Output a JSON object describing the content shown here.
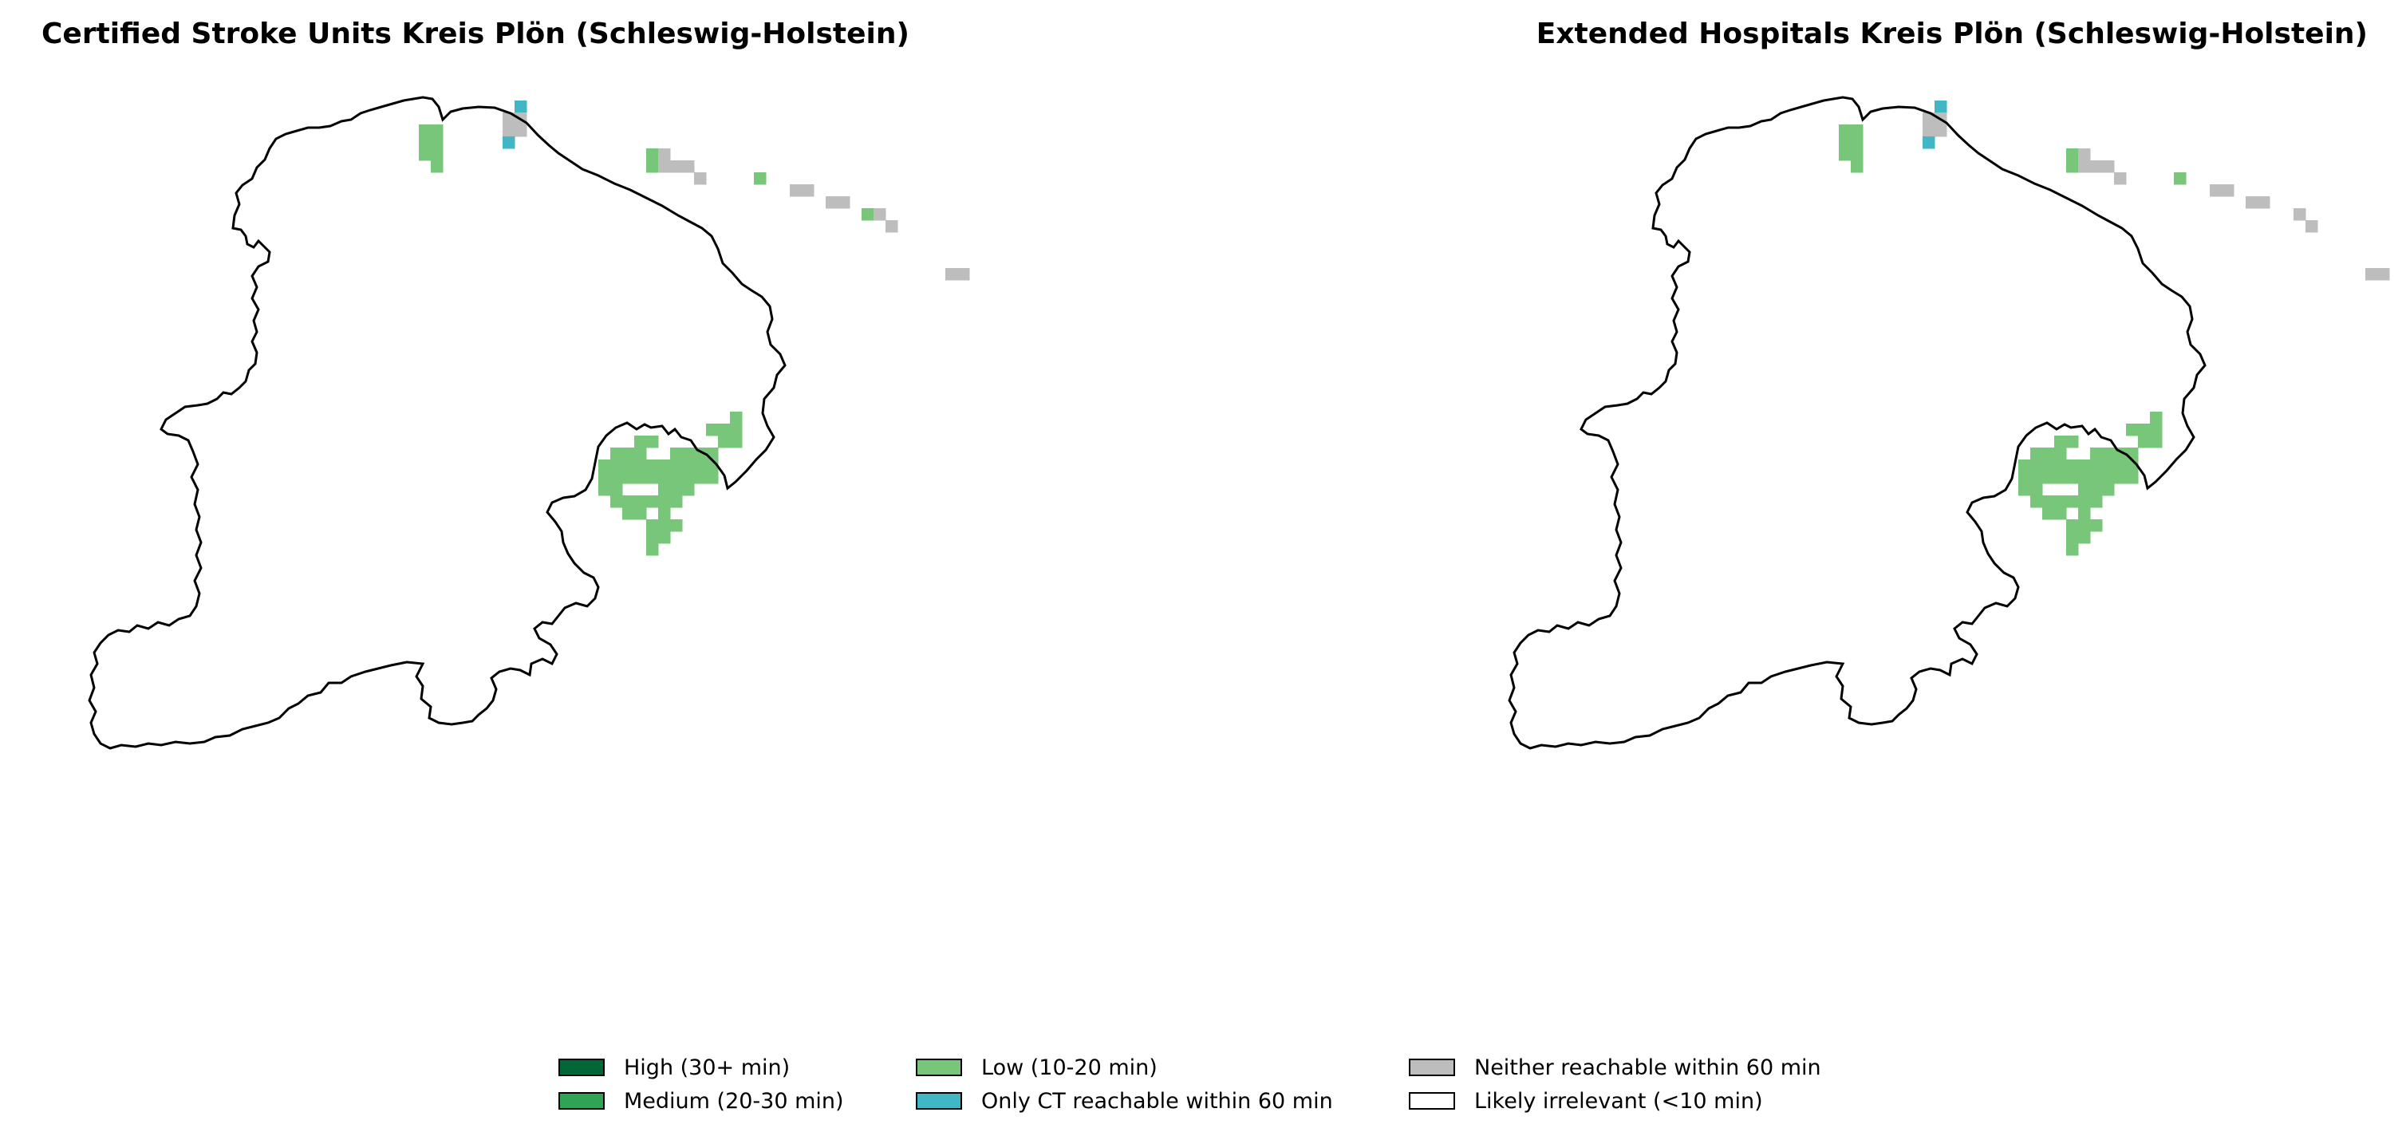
{
  "maps": [
    {
      "title": "Certified Stroke Units Kreis Plön (Schleswig-Holstein)",
      "cells": [
        {
          "c": 7,
          "r": 2,
          "cat": "low"
        },
        {
          "c": 8,
          "r": 2,
          "cat": "low"
        },
        {
          "c": 7,
          "r": 3,
          "cat": "low"
        },
        {
          "c": 8,
          "r": 3,
          "cat": "low"
        },
        {
          "c": 7,
          "r": 4,
          "cat": "low"
        },
        {
          "c": 8,
          "r": 4,
          "cat": "low"
        },
        {
          "c": 8,
          "r": 5,
          "cat": "low"
        },
        {
          "c": 15,
          "r": 0,
          "cat": "ct_only"
        },
        {
          "c": 14,
          "r": 1,
          "cat": "neither"
        },
        {
          "c": 15,
          "r": 1,
          "cat": "neither"
        },
        {
          "c": 14,
          "r": 2,
          "cat": "neither"
        },
        {
          "c": 15,
          "r": 2,
          "cat": "neither"
        },
        {
          "c": 14,
          "r": 3,
          "cat": "ct_only"
        },
        {
          "c": 26,
          "r": 4,
          "cat": "low"
        },
        {
          "c": 27,
          "r": 4,
          "cat": "neither"
        },
        {
          "c": 26,
          "r": 5,
          "cat": "low"
        },
        {
          "c": 27,
          "r": 5,
          "cat": "neither"
        },
        {
          "c": 28,
          "r": 5,
          "cat": "neither"
        },
        {
          "c": 29,
          "r": 5,
          "cat": "neither"
        },
        {
          "c": 30,
          "r": 6,
          "cat": "neither"
        },
        {
          "c": 35,
          "r": 6,
          "cat": "low"
        },
        {
          "c": 38,
          "r": 7,
          "cat": "neither"
        },
        {
          "c": 39,
          "r": 7,
          "cat": "neither"
        },
        {
          "c": 41,
          "r": 8,
          "cat": "neither"
        },
        {
          "c": 42,
          "r": 8,
          "cat": "neither"
        },
        {
          "c": 44,
          "r": 9,
          "cat": "low"
        },
        {
          "c": 45,
          "r": 9,
          "cat": "neither"
        },
        {
          "c": 46,
          "r": 10,
          "cat": "neither"
        },
        {
          "c": 51,
          "r": 14,
          "cat": "neither"
        },
        {
          "c": 52,
          "r": 14,
          "cat": "neither"
        },
        {
          "c": 33,
          "r": 26,
          "cat": "low"
        },
        {
          "c": 31,
          "r": 27,
          "cat": "low"
        },
        {
          "c": 32,
          "r": 27,
          "cat": "low"
        },
        {
          "c": 33,
          "r": 27,
          "cat": "low"
        },
        {
          "c": 25,
          "r": 28,
          "cat": "low"
        },
        {
          "c": 26,
          "r": 28,
          "cat": "low"
        },
        {
          "c": 32,
          "r": 28,
          "cat": "low"
        },
        {
          "c": 33,
          "r": 28,
          "cat": "low"
        },
        {
          "c": 23,
          "r": 29,
          "cat": "low"
        },
        {
          "c": 24,
          "r": 29,
          "cat": "low"
        },
        {
          "c": 25,
          "r": 29,
          "cat": "low"
        },
        {
          "c": 28,
          "r": 29,
          "cat": "low"
        },
        {
          "c": 29,
          "r": 29,
          "cat": "low"
        },
        {
          "c": 30,
          "r": 29,
          "cat": "low"
        },
        {
          "c": 31,
          "r": 29,
          "cat": "low"
        },
        {
          "c": 22,
          "r": 30,
          "cat": "low"
        },
        {
          "c": 23,
          "r": 30,
          "cat": "low"
        },
        {
          "c": 24,
          "r": 30,
          "cat": "low"
        },
        {
          "c": 25,
          "r": 30,
          "cat": "low"
        },
        {
          "c": 26,
          "r": 30,
          "cat": "low"
        },
        {
          "c": 27,
          "r": 30,
          "cat": "low"
        },
        {
          "c": 28,
          "r": 30,
          "cat": "low"
        },
        {
          "c": 29,
          "r": 30,
          "cat": "low"
        },
        {
          "c": 30,
          "r": 30,
          "cat": "low"
        },
        {
          "c": 31,
          "r": 30,
          "cat": "low"
        },
        {
          "c": 22,
          "r": 31,
          "cat": "low"
        },
        {
          "c": 23,
          "r": 31,
          "cat": "low"
        },
        {
          "c": 24,
          "r": 31,
          "cat": "low"
        },
        {
          "c": 25,
          "r": 31,
          "cat": "low"
        },
        {
          "c": 26,
          "r": 31,
          "cat": "low"
        },
        {
          "c": 27,
          "r": 31,
          "cat": "low"
        },
        {
          "c": 28,
          "r": 31,
          "cat": "low"
        },
        {
          "c": 29,
          "r": 31,
          "cat": "low"
        },
        {
          "c": 30,
          "r": 31,
          "cat": "low"
        },
        {
          "c": 31,
          "r": 31,
          "cat": "low"
        },
        {
          "c": 22,
          "r": 32,
          "cat": "low"
        },
        {
          "c": 23,
          "r": 32,
          "cat": "low"
        },
        {
          "c": 27,
          "r": 32,
          "cat": "low"
        },
        {
          "c": 28,
          "r": 32,
          "cat": "low"
        },
        {
          "c": 29,
          "r": 32,
          "cat": "low"
        },
        {
          "c": 23,
          "r": 33,
          "cat": "low"
        },
        {
          "c": 24,
          "r": 33,
          "cat": "low"
        },
        {
          "c": 25,
          "r": 33,
          "cat": "low"
        },
        {
          "c": 26,
          "r": 33,
          "cat": "low"
        },
        {
          "c": 27,
          "r": 33,
          "cat": "low"
        },
        {
          "c": 28,
          "r": 33,
          "cat": "low"
        },
        {
          "c": 24,
          "r": 34,
          "cat": "low"
        },
        {
          "c": 25,
          "r": 34,
          "cat": "low"
        },
        {
          "c": 27,
          "r": 34,
          "cat": "low"
        },
        {
          "c": 26,
          "r": 35,
          "cat": "low"
        },
        {
          "c": 27,
          "r": 35,
          "cat": "low"
        },
        {
          "c": 28,
          "r": 35,
          "cat": "low"
        },
        {
          "c": 26,
          "r": 36,
          "cat": "low"
        },
        {
          "c": 27,
          "r": 36,
          "cat": "low"
        },
        {
          "c": 26,
          "r": 37,
          "cat": "low"
        }
      ]
    },
    {
      "title": "Extended Hospitals Kreis Plön (Schleswig-Holstein)",
      "cells": [
        {
          "c": 7,
          "r": 2,
          "cat": "low"
        },
        {
          "c": 8,
          "r": 2,
          "cat": "low"
        },
        {
          "c": 7,
          "r": 3,
          "cat": "low"
        },
        {
          "c": 8,
          "r": 3,
          "cat": "low"
        },
        {
          "c": 7,
          "r": 4,
          "cat": "low"
        },
        {
          "c": 8,
          "r": 4,
          "cat": "low"
        },
        {
          "c": 8,
          "r": 5,
          "cat": "low"
        },
        {
          "c": 15,
          "r": 0,
          "cat": "ct_only"
        },
        {
          "c": 14,
          "r": 1,
          "cat": "neither"
        },
        {
          "c": 15,
          "r": 1,
          "cat": "neither"
        },
        {
          "c": 14,
          "r": 2,
          "cat": "neither"
        },
        {
          "c": 15,
          "r": 2,
          "cat": "neither"
        },
        {
          "c": 14,
          "r": 3,
          "cat": "ct_only"
        },
        {
          "c": 26,
          "r": 4,
          "cat": "low"
        },
        {
          "c": 27,
          "r": 4,
          "cat": "neither"
        },
        {
          "c": 26,
          "r": 5,
          "cat": "low"
        },
        {
          "c": 27,
          "r": 5,
          "cat": "neither"
        },
        {
          "c": 28,
          "r": 5,
          "cat": "neither"
        },
        {
          "c": 29,
          "r": 5,
          "cat": "neither"
        },
        {
          "c": 30,
          "r": 6,
          "cat": "neither"
        },
        {
          "c": 35,
          "r": 6,
          "cat": "low"
        },
        {
          "c": 38,
          "r": 7,
          "cat": "neither"
        },
        {
          "c": 39,
          "r": 7,
          "cat": "neither"
        },
        {
          "c": 41,
          "r": 8,
          "cat": "neither"
        },
        {
          "c": 42,
          "r": 8,
          "cat": "neither"
        },
        {
          "c": 45,
          "r": 9,
          "cat": "neither"
        },
        {
          "c": 46,
          "r": 10,
          "cat": "neither"
        },
        {
          "c": 51,
          "r": 14,
          "cat": "neither"
        },
        {
          "c": 52,
          "r": 14,
          "cat": "neither"
        },
        {
          "c": 33,
          "r": 26,
          "cat": "low"
        },
        {
          "c": 31,
          "r": 27,
          "cat": "low"
        },
        {
          "c": 32,
          "r": 27,
          "cat": "low"
        },
        {
          "c": 33,
          "r": 27,
          "cat": "low"
        },
        {
          "c": 25,
          "r": 28,
          "cat": "low"
        },
        {
          "c": 26,
          "r": 28,
          "cat": "low"
        },
        {
          "c": 32,
          "r": 28,
          "cat": "low"
        },
        {
          "c": 33,
          "r": 28,
          "cat": "low"
        },
        {
          "c": 23,
          "r": 29,
          "cat": "low"
        },
        {
          "c": 24,
          "r": 29,
          "cat": "low"
        },
        {
          "c": 25,
          "r": 29,
          "cat": "low"
        },
        {
          "c": 28,
          "r": 29,
          "cat": "low"
        },
        {
          "c": 29,
          "r": 29,
          "cat": "low"
        },
        {
          "c": 30,
          "r": 29,
          "cat": "low"
        },
        {
          "c": 31,
          "r": 29,
          "cat": "low"
        },
        {
          "c": 22,
          "r": 30,
          "cat": "low"
        },
        {
          "c": 23,
          "r": 30,
          "cat": "low"
        },
        {
          "c": 24,
          "r": 30,
          "cat": "low"
        },
        {
          "c": 25,
          "r": 30,
          "cat": "low"
        },
        {
          "c": 26,
          "r": 30,
          "cat": "low"
        },
        {
          "c": 27,
          "r": 30,
          "cat": "low"
        },
        {
          "c": 28,
          "r": 30,
          "cat": "low"
        },
        {
          "c": 29,
          "r": 30,
          "cat": "low"
        },
        {
          "c": 30,
          "r": 30,
          "cat": "low"
        },
        {
          "c": 31,
          "r": 30,
          "cat": "low"
        },
        {
          "c": 22,
          "r": 31,
          "cat": "low"
        },
        {
          "c": 23,
          "r": 31,
          "cat": "low"
        },
        {
          "c": 24,
          "r": 31,
          "cat": "low"
        },
        {
          "c": 25,
          "r": 31,
          "cat": "low"
        },
        {
          "c": 26,
          "r": 31,
          "cat": "low"
        },
        {
          "c": 27,
          "r": 31,
          "cat": "low"
        },
        {
          "c": 28,
          "r": 31,
          "cat": "low"
        },
        {
          "c": 29,
          "r": 31,
          "cat": "low"
        },
        {
          "c": 30,
          "r": 31,
          "cat": "low"
        },
        {
          "c": 31,
          "r": 31,
          "cat": "low"
        },
        {
          "c": 22,
          "r": 32,
          "cat": "low"
        },
        {
          "c": 23,
          "r": 32,
          "cat": "low"
        },
        {
          "c": 27,
          "r": 32,
          "cat": "low"
        },
        {
          "c": 28,
          "r": 32,
          "cat": "low"
        },
        {
          "c": 29,
          "r": 32,
          "cat": "low"
        },
        {
          "c": 23,
          "r": 33,
          "cat": "low"
        },
        {
          "c": 24,
          "r": 33,
          "cat": "low"
        },
        {
          "c": 25,
          "r": 33,
          "cat": "low"
        },
        {
          "c": 26,
          "r": 33,
          "cat": "low"
        },
        {
          "c": 27,
          "r": 33,
          "cat": "low"
        },
        {
          "c": 28,
          "r": 33,
          "cat": "low"
        },
        {
          "c": 24,
          "r": 34,
          "cat": "low"
        },
        {
          "c": 25,
          "r": 34,
          "cat": "low"
        },
        {
          "c": 27,
          "r": 34,
          "cat": "low"
        },
        {
          "c": 26,
          "r": 35,
          "cat": "low"
        },
        {
          "c": 27,
          "r": 35,
          "cat": "low"
        },
        {
          "c": 28,
          "r": 35,
          "cat": "low"
        },
        {
          "c": 26,
          "r": 36,
          "cat": "low"
        },
        {
          "c": 27,
          "r": 36,
          "cat": "low"
        },
        {
          "c": 26,
          "r": 37,
          "cat": "low"
        }
      ]
    }
  ],
  "legend": {
    "high": {
      "label": "High (30+ min)",
      "color": "#006837"
    },
    "medium": {
      "label": "Medium (20-30 min)",
      "color": "#31a354"
    },
    "low": {
      "label": "Low (10-20 min)",
      "color": "#78c679"
    },
    "ct_only": {
      "label": "Only CT reachable within 60 min",
      "color": "#41b6c4"
    },
    "neither": {
      "label": "Neither reachable within 60 min",
      "color": "#bdbdbd"
    },
    "irrelevant": {
      "label": "Likely irrelevant (<10 min)",
      "color": "#ffffff"
    }
  },
  "colors": {
    "outline": "#000000",
    "background": "#ffffff"
  }
}
